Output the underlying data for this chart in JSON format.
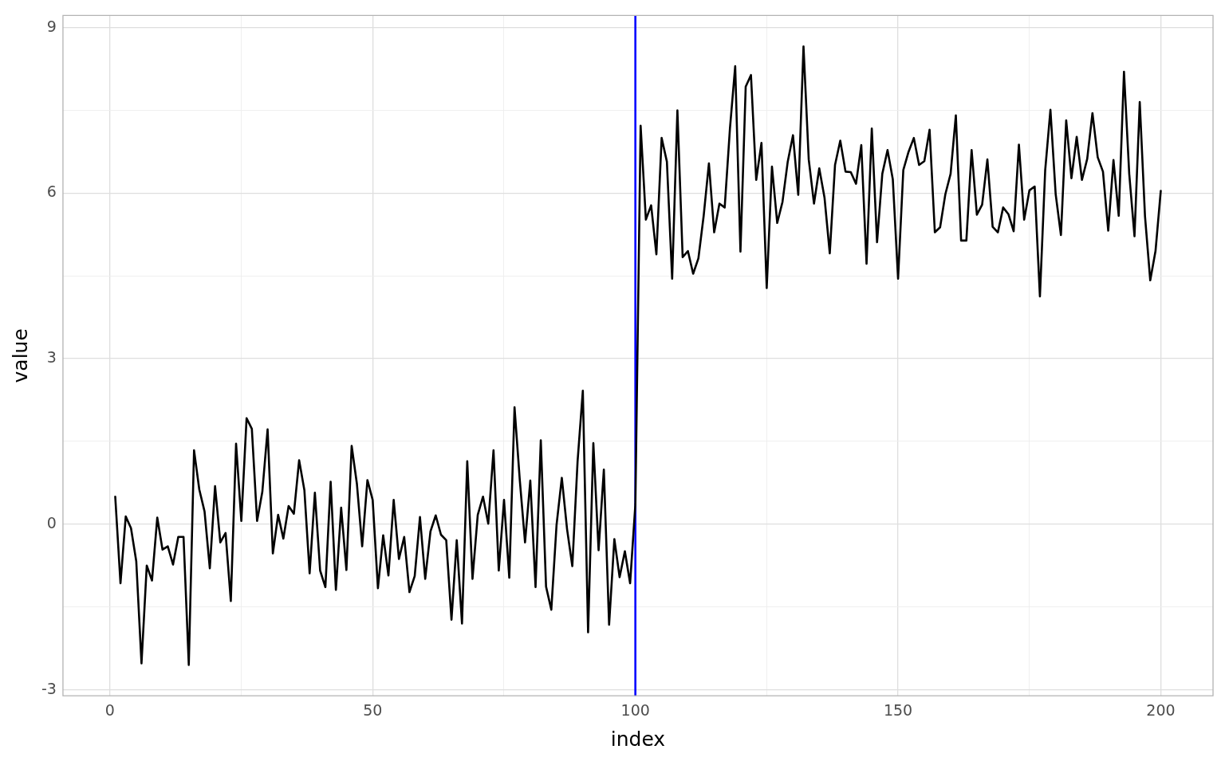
{
  "chart_data": {
    "type": "line",
    "xlabel": "index",
    "ylabel": "value",
    "x": [
      1,
      2,
      3,
      4,
      5,
      6,
      7,
      8,
      9,
      10,
      11,
      12,
      13,
      14,
      15,
      16,
      17,
      18,
      19,
      20,
      21,
      22,
      23,
      24,
      25,
      26,
      27,
      28,
      29,
      30,
      31,
      32,
      33,
      34,
      35,
      36,
      37,
      38,
      39,
      40,
      41,
      42,
      43,
      44,
      45,
      46,
      47,
      48,
      49,
      50,
      51,
      52,
      53,
      54,
      55,
      56,
      57,
      58,
      59,
      60,
      61,
      62,
      63,
      64,
      65,
      66,
      67,
      68,
      69,
      70,
      71,
      72,
      73,
      74,
      75,
      76,
      77,
      78,
      79,
      80,
      81,
      82,
      83,
      84,
      85,
      86,
      87,
      88,
      89,
      90,
      91,
      92,
      93,
      94,
      95,
      96,
      97,
      98,
      99,
      100,
      101,
      102,
      103,
      104,
      105,
      106,
      107,
      108,
      109,
      110,
      111,
      112,
      113,
      114,
      115,
      116,
      117,
      118,
      119,
      120,
      121,
      122,
      123,
      124,
      125,
      126,
      127,
      128,
      129,
      130,
      131,
      132,
      133,
      134,
      135,
      136,
      137,
      138,
      139,
      140,
      141,
      142,
      143,
      144,
      145,
      146,
      147,
      148,
      149,
      150,
      151,
      152,
      153,
      154,
      155,
      156,
      157,
      158,
      159,
      160,
      161,
      162,
      163,
      164,
      165,
      166,
      167,
      168,
      169,
      170,
      171,
      172,
      173,
      174,
      175,
      176,
      177,
      178,
      179,
      180,
      181,
      182,
      183,
      184,
      185,
      186,
      187,
      188,
      189,
      190,
      191,
      192,
      193,
      194,
      195,
      196,
      197,
      198,
      199,
      200
    ],
    "series": [
      {
        "color": "#000000",
        "values": [
          0.5,
          -1.07,
          0.14,
          -0.07,
          -0.67,
          -2.52,
          -0.75,
          -1.02,
          0.12,
          -0.46,
          -0.4,
          -0.73,
          -0.23,
          -0.23,
          -2.55,
          1.34,
          0.63,
          0.23,
          -0.8,
          0.69,
          -0.33,
          -0.16,
          -1.39,
          1.46,
          0.06,
          1.92,
          1.73,
          0.06,
          0.59,
          1.72,
          -0.53,
          0.17,
          -0.26,
          0.33,
          0.19,
          1.16,
          0.62,
          -0.89,
          0.57,
          -0.84,
          -1.14,
          0.77,
          -1.19,
          0.3,
          -0.83,
          1.42,
          0.73,
          -0.4,
          0.8,
          0.44,
          -1.16,
          -0.2,
          -0.93,
          0.44,
          -0.63,
          -0.23,
          -1.23,
          -0.94,
          0.13,
          -0.99,
          -0.13,
          0.16,
          -0.19,
          -0.29,
          -1.73,
          -0.29,
          -1.8,
          1.14,
          -0.99,
          0.17,
          0.5,
          0.01,
          1.34,
          -0.84,
          0.44,
          -0.97,
          2.12,
          0.8,
          -0.33,
          0.79,
          -1.14,
          1.52,
          -1.13,
          -1.55,
          -0.01,
          0.84,
          -0.09,
          -0.76,
          1.14,
          2.42,
          -1.96,
          1.47,
          -0.47,
          0.99,
          -1.82,
          -0.27,
          -0.96,
          -0.49,
          -1.07,
          0.36,
          7.22,
          5.52,
          5.78,
          4.89,
          7.0,
          6.57,
          4.45,
          7.5,
          4.84,
          4.95,
          4.54,
          4.82,
          5.59,
          6.54,
          5.29,
          5.81,
          5.74,
          7.17,
          8.3,
          4.94,
          7.93,
          8.14,
          6.24,
          6.91,
          4.28,
          6.48,
          5.46,
          5.84,
          6.57,
          7.05,
          5.97,
          8.66,
          6.61,
          5.81,
          6.45,
          5.92,
          4.91,
          6.51,
          6.95,
          6.39,
          6.38,
          6.17,
          6.87,
          4.72,
          7.17,
          5.11,
          6.35,
          6.78,
          6.25,
          4.45,
          6.42,
          6.75,
          7.0,
          6.51,
          6.58,
          7.15,
          5.29,
          5.38,
          5.98,
          6.35,
          7.41,
          5.14,
          5.14,
          6.78,
          5.61,
          5.79,
          6.61,
          5.39,
          5.29,
          5.74,
          5.62,
          5.31,
          6.88,
          5.52,
          6.05,
          6.12,
          4.13,
          6.41,
          7.51,
          5.98,
          5.24,
          7.32,
          6.27,
          7.02,
          6.24,
          6.62,
          7.45,
          6.65,
          6.39,
          5.32,
          6.6,
          5.59,
          8.2,
          6.35,
          5.22,
          7.65,
          5.58,
          4.42,
          4.95,
          6.04
        ]
      }
    ],
    "xlim": [
      -8.95,
      209.95
    ],
    "xticks": [
      0,
      {
        "value": 25,
        "label": null
      },
      50,
      {
        "value": 75,
        "label": null
      },
      100,
      {
        "value": 125,
        "label": null
      },
      150,
      {
        "value": 175,
        "label": null
      },
      200
    ],
    "ylim": [
      -3.11,
      9.22
    ],
    "yticks": [
      -3,
      {
        "value": -1.5,
        "label": null
      },
      0,
      {
        "value": 1.5,
        "label": null
      },
      3,
      {
        "value": 4.5,
        "label": null
      },
      6,
      {
        "value": 7.5,
        "label": null
      },
      9
    ],
    "grid": true,
    "legend": false,
    "marker": "none",
    "line_style": "solid",
    "ref_lines": [
      {
        "axis": "x",
        "value": 100,
        "color": "#0000ff"
      }
    ]
  }
}
